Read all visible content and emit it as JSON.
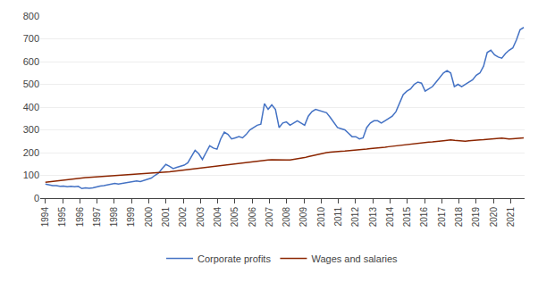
{
  "chart_data": {
    "type": "line",
    "x": [
      1994,
      1994.2118,
      1994.4237,
      1994.6355,
      1994.8473,
      1995.0592,
      1995.271,
      1995.4828,
      1995.6947,
      1995.9065,
      1996.1183,
      1996.3302,
      1996.542,
      1996.7538,
      1996.9656,
      1997.1775,
      1997.3893,
      1997.6011,
      1997.813,
      1998.0248,
      1998.2366,
      1998.4485,
      1998.6603,
      1998.8721,
      1999.084,
      1999.2958,
      1999.5076,
      1999.7195,
      1999.9313,
      2000.1431,
      2000.355,
      2000.5668,
      2000.7786,
      2000.9905,
      2001.2023,
      2001.4141,
      2001.626,
      2001.8378,
      2002.0496,
      2002.2615,
      2002.4733,
      2002.6851,
      2002.8969,
      2003.1088,
      2003.3206,
      2003.5324,
      2003.7443,
      2003.9561,
      2004.1679,
      2004.3798,
      2004.5916,
      2004.8034,
      2005.0153,
      2005.2271,
      2005.4389,
      2005.6508,
      2005.8626,
      2006.0744,
      2006.2863,
      2006.4981,
      2006.7099,
      2006.9218,
      2007.1336,
      2007.3454,
      2007.5573,
      2007.7691,
      2007.9809,
      2008.1927,
      2008.4046,
      2008.6164,
      2008.8282,
      2009.0401,
      2009.2519,
      2009.4637,
      2009.6756,
      2009.8874,
      2010.0992,
      2010.3111,
      2010.5229,
      2010.7347,
      2010.9466,
      2011.1584,
      2011.3702,
      2011.5821,
      2011.7939,
      2012.0057,
      2012.2176,
      2012.4294,
      2012.6412,
      2012.8531,
      2013.0649,
      2013.2767,
      2013.4885,
      2013.7004,
      2013.9122,
      2014.124,
      2014.3359,
      2014.5477,
      2014.7595,
      2014.9714,
      2015.1832,
      2015.395,
      2015.6069,
      2015.8187,
      2016.0305,
      2016.2424,
      2016.4542,
      2016.666,
      2016.8779,
      2017.0897,
      2017.3015,
      2017.5134,
      2017.7252,
      2017.937,
      2018.1489,
      2018.3607,
      2018.5725,
      2018.7844,
      2018.9962,
      2019.208,
      2019.4198,
      2019.6317,
      2019.8435,
      2020.0553,
      2020.2672,
      2020.479,
      2020.6908,
      2020.9027,
      2021.1145,
      2021.3263,
      2021.5382,
      2021.75
    ],
    "series": [
      {
        "name": "Corporate profits",
        "color": "#4472C4",
        "values": [
          62,
          58,
          55,
          55,
          52,
          53,
          50,
          52,
          50,
          52,
          42,
          45,
          43,
          45,
          50,
          53,
          55,
          58,
          60,
          65,
          62,
          65,
          68,
          72,
          73,
          75,
          73,
          78,
          80,
          88,
          100,
          110,
          130,
          148,
          140,
          130,
          135,
          140,
          145,
          155,
          180,
          210,
          195,
          170,
          200,
          230,
          220,
          215,
          260,
          290,
          280,
          260,
          265,
          270,
          265,
          280,
          300,
          310,
          320,
          325,
          415,
          390,
          410,
          390,
          310,
          330,
          335,
          320,
          330,
          340,
          330,
          320,
          360,
          380,
          390,
          385,
          380,
          375,
          355,
          330,
          310,
          305,
          300,
          285,
          270,
          270,
          260,
          265,
          310,
          330,
          340,
          340,
          330,
          340,
          350,
          360,
          380,
          420,
          455,
          470,
          480,
          500,
          510,
          505,
          470,
          480,
          490,
          510,
          530,
          550,
          560,
          550,
          490,
          500,
          490,
          500,
          510,
          520,
          540,
          550,
          580,
          640,
          650,
          630,
          620,
          615,
          635,
          650,
          660,
          695,
          740,
          750
        ]
      },
      {
        "name": "Wages and salaries",
        "color": "#8B2500",
        "values": [
          70,
          72,
          74,
          76,
          78,
          80,
          82,
          84,
          86,
          88,
          89,
          90,
          91,
          92,
          93,
          94,
          95,
          96,
          97,
          98,
          99,
          100,
          101,
          102,
          103,
          104,
          105,
          106,
          107,
          108,
          110,
          112,
          114,
          115,
          116,
          118,
          120,
          122,
          124,
          126,
          128,
          130,
          132,
          134,
          136,
          138,
          140,
          142,
          144,
          145,
          146,
          148,
          150,
          152,
          154,
          156,
          158,
          160,
          162,
          165,
          167,
          168,
          169,
          168,
          168,
          168,
          168,
          168,
          170,
          172,
          175,
          178,
          182,
          186,
          190,
          195,
          198,
          200,
          202,
          204,
          205,
          206,
          207,
          208,
          210,
          212,
          213,
          215,
          216,
          218,
          219,
          220,
          222,
          224,
          226,
          228,
          230,
          232,
          234,
          236,
          238,
          240,
          242,
          244,
          245,
          246,
          247,
          248,
          250,
          252,
          254,
          256,
          254,
          252,
          250,
          250,
          252,
          254,
          255,
          256,
          257,
          258,
          258,
          260,
          262,
          264,
          262,
          260,
          261,
          262,
          263,
          265
        ]
      }
    ],
    "xlim": [
      1993.7,
      2021.8
    ],
    "xticks": [
      1994,
      1995,
      1996,
      1997,
      1998,
      1999,
      2000,
      2001,
      2002,
      2003,
      2004,
      2005,
      2006,
      2007,
      2008,
      2009,
      2010,
      2011,
      2012,
      2013,
      2014,
      2015,
      2016,
      2017,
      2018,
      2019,
      2020,
      2021
    ],
    "ylim": [
      0,
      800
    ],
    "yticks": [
      0,
      100,
      200,
      300,
      400,
      500,
      600,
      700,
      800
    ],
    "grid": "y",
    "legend": "bottom"
  }
}
